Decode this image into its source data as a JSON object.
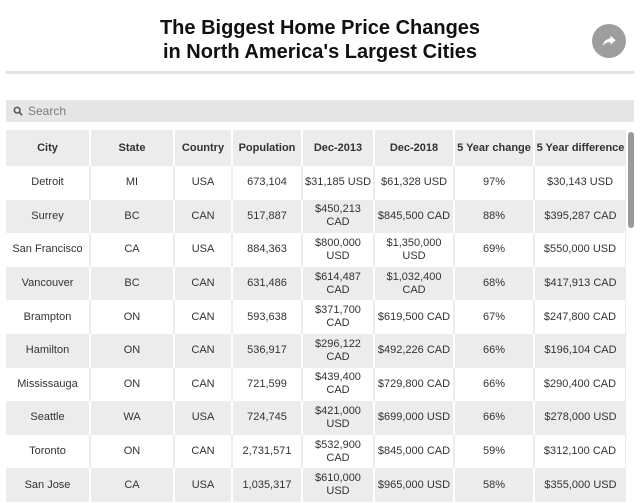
{
  "header": {
    "title_line1": "The Biggest Home Price Changes",
    "title_line2": "in North America's Largest Cities",
    "share_icon": "share-icon"
  },
  "search": {
    "placeholder": "Search",
    "icon": "search-icon"
  },
  "table": {
    "columns": [
      "City",
      "State",
      "Country",
      "Population",
      "Dec-2013",
      "Dec-2018",
      "5 Year change",
      "5 Year difference"
    ],
    "rows": [
      [
        "Detroit",
        "MI",
        "USA",
        "673,104",
        "$31,185 USD",
        "$61,328 USD",
        "97%",
        "$30,143 USD"
      ],
      [
        "Surrey",
        "BC",
        "CAN",
        "517,887",
        "$450,213 CAD",
        "$845,500 CAD",
        "88%",
        "$395,287 CAD"
      ],
      [
        "San Francisco",
        "CA",
        "USA",
        "884,363",
        "$800,000 USD",
        "$1,350,000 USD",
        "69%",
        "$550,000 USD"
      ],
      [
        "Vancouver",
        "BC",
        "CAN",
        "631,486",
        "$614,487 CAD",
        "$1,032,400 CAD",
        "68%",
        "$417,913 CAD"
      ],
      [
        "Brampton",
        "ON",
        "CAN",
        "593,638",
        "$371,700 CAD",
        "$619,500 CAD",
        "67%",
        "$247,800 CAD"
      ],
      [
        "Hamilton",
        "ON",
        "CAN",
        "536,917",
        "$296,122 CAD",
        "$492,226 CAD",
        "66%",
        "$196,104 CAD"
      ],
      [
        "Mississauga",
        "ON",
        "CAN",
        "721,599",
        "$439,400 CAD",
        "$729,800 CAD",
        "66%",
        "$290,400 CAD"
      ],
      [
        "Seattle",
        "WA",
        "USA",
        "724,745",
        "$421,000 USD",
        "$699,000 USD",
        "66%",
        "$278,000 USD"
      ],
      [
        "Toronto",
        "ON",
        "CAN",
        "2,731,571",
        "$532,900 CAD",
        "$845,000 CAD",
        "59%",
        "$312,100 CAD"
      ],
      [
        "San Jose",
        "CA",
        "USA",
        "1,035,317",
        "$610,000 USD",
        "$965,000 USD",
        "58%",
        "$355,000 USD"
      ]
    ]
  }
}
